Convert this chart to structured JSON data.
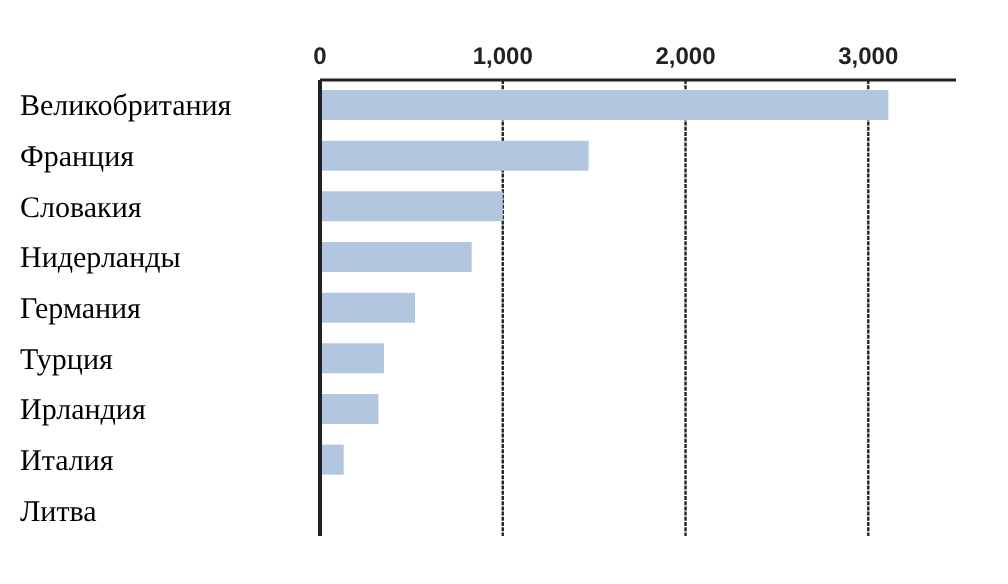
{
  "chart_data": {
    "type": "bar",
    "orientation": "horizontal",
    "categories": [
      "Великобритания",
      "Франция",
      "Словакия",
      "Нидерланды",
      "Германия",
      "Турция",
      "Ирландия",
      "Италия",
      "Литва"
    ],
    "values": [
      3110,
      1470,
      1000,
      830,
      520,
      350,
      320,
      130,
      0
    ],
    "color": "#b3c6e0",
    "xlim": [
      0,
      3480
    ],
    "xticks": [
      {
        "value": 0,
        "label": "0"
      },
      {
        "value": 1000,
        "label": "1,000"
      },
      {
        "value": 2000,
        "label": "2,000"
      },
      {
        "value": 3000,
        "label": "3,000"
      }
    ],
    "grid": "x"
  }
}
